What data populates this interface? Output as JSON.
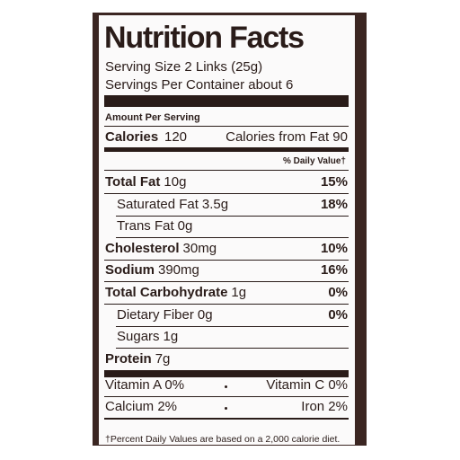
{
  "label": {
    "title": "Nutrition Facts",
    "serving_size": "Serving Size 2 Links (25g)",
    "servings_per_container": "Servings Per Container about 6",
    "amount_per_serving": "Amount Per Serving",
    "calories_label": "Calories",
    "calories_value": "120",
    "calories_from_fat": "Calories from Fat 90",
    "daily_value_header": "% Daily Value†",
    "rows": [
      {
        "name": "Total Fat",
        "amount": "10g",
        "dv": "15%",
        "bold": true,
        "indent": false
      },
      {
        "name": "Saturated Fat",
        "amount": "3.5g",
        "dv": "18%",
        "bold": false,
        "indent": true
      },
      {
        "name": "Trans Fat",
        "amount": "0g",
        "bold": false,
        "indent": true
      },
      {
        "name": "Cholesterol",
        "amount": "30mg",
        "dv": "10%",
        "bold": true,
        "indent": false
      },
      {
        "name": "Sodium",
        "amount": "390mg",
        "dv": "16%",
        "bold": true,
        "indent": false
      },
      {
        "name": "Total Carbohydrate",
        "amount": "1g",
        "dv": "0%",
        "bold": true,
        "indent": false
      },
      {
        "name": "Dietary Fiber",
        "amount": "0g",
        "dv": "0%",
        "bold": false,
        "indent": true
      },
      {
        "name": "Sugars",
        "amount": "1g",
        "bold": false,
        "indent": true
      },
      {
        "name": "Protein",
        "amount": "7g",
        "bold": true,
        "indent": false
      }
    ],
    "vitamins": [
      {
        "left": "Vitamin A 0%",
        "right": "Vitamin C 0%"
      },
      {
        "left": "Calcium 2%",
        "right": "Iron 2%"
      }
    ],
    "footnote": "†Percent Daily Values are based on a 2,000 calorie diet."
  }
}
